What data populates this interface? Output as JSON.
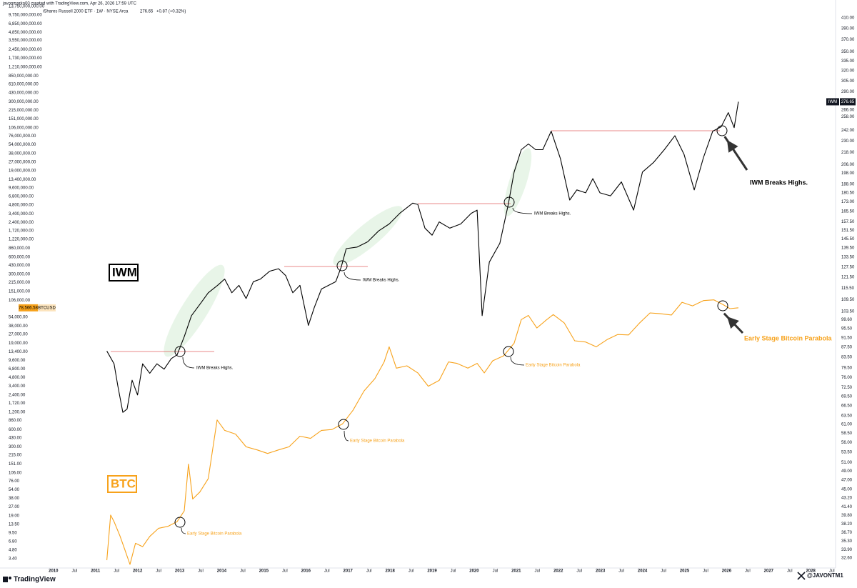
{
  "chart_data": {
    "type": "line",
    "title": "javonmarko00 created with TradingView.com, Apr 26, 2026 17:59 UTC",
    "subtitle": "iShares Russell 2000 ETF · 1W · NYSE Arca",
    "last_price": "276.65",
    "change": "+0.87 (+0.32%)",
    "log_scale": true,
    "grid": false,
    "xlim": [
      2008.73,
      2028.59
    ],
    "xticks": [
      2010,
      {
        "value": 2010.5,
        "label": "Jul"
      },
      2011,
      {
        "value": 2011.5,
        "label": "Jul"
      },
      2012,
      {
        "value": 2012.5,
        "label": "Jul"
      },
      2013,
      {
        "value": 2013.5,
        "label": "Jul"
      },
      2014,
      {
        "value": 2014.5,
        "label": "Jul"
      },
      2015,
      {
        "value": 2015.5,
        "label": "Jul"
      },
      2016,
      {
        "value": 2016.5,
        "label": "Jul"
      },
      2017,
      {
        "value": 2017.5,
        "label": "Jul"
      },
      2018,
      {
        "value": 2018.5,
        "label": "Jul"
      },
      2019,
      {
        "value": 2019.5,
        "label": "Jul"
      },
      2020,
      {
        "value": 2020.5,
        "label": "Jul"
      },
      2021,
      {
        "value": 2021.5,
        "label": "Jul"
      },
      2022,
      {
        "value": 2022.5,
        "label": "Jul"
      },
      2023,
      {
        "value": 2023.5,
        "label": "Jul"
      },
      2024,
      {
        "value": 2024.5,
        "label": "Jul"
      },
      2025,
      {
        "value": 2025.5,
        "label": "Jul"
      },
      2026,
      {
        "value": 2026.5,
        "label": "Jul"
      },
      2027,
      {
        "value": 2027.5,
        "label": "Jul"
      },
      2028,
      {
        "value": 2028.5,
        "label": "Jul"
      }
    ],
    "ylim": [
      2.34,
      14150000000
    ],
    "yticks": [
      {
        "value": 13750000000,
        "label": "13,750,000,000.00"
      },
      {
        "value": 9750000000,
        "label": "9,750,000,000.00"
      },
      {
        "value": 6850000000,
        "label": "6,850,000,000.00"
      },
      {
        "value": 4850000000,
        "label": "4,850,000,000.00"
      },
      {
        "value": 3550000000,
        "label": "3,550,000,000.00"
      },
      {
        "value": 2450000000,
        "label": "2,450,000,000.00"
      },
      {
        "value": 1730000000,
        "label": "1,730,000,000.00"
      },
      {
        "value": 1210000000,
        "label": "1,210,000,000.00"
      },
      {
        "value": 850000000,
        "label": "850,000,000.00"
      },
      {
        "value": 610000000,
        "label": "610,000,000.00"
      },
      {
        "value": 430000000,
        "label": "430,000,000.00"
      },
      {
        "value": 300000000,
        "label": "300,000,000.00"
      },
      {
        "value": 215000000,
        "label": "215,000,000.00"
      },
      {
        "value": 151000000,
        "label": "151,000,000.00"
      },
      {
        "value": 106000000,
        "label": "106,000,000.00"
      },
      {
        "value": 76000000,
        "label": "76,000,000.00"
      },
      {
        "value": 54000000,
        "label": "54,000,000.00"
      },
      {
        "value": 38000000,
        "label": "38,000,000.00"
      },
      {
        "value": 27000000,
        "label": "27,000,000.00"
      },
      {
        "value": 19000000,
        "label": "19,000,000.00"
      },
      {
        "value": 13400000,
        "label": "13,400,000.00"
      },
      {
        "value": 9600000,
        "label": "9,600,000.00"
      },
      {
        "value": 6800000,
        "label": "6,800,000.00"
      },
      {
        "value": 4800000,
        "label": "4,800,000.00"
      },
      {
        "value": 3400000,
        "label": "3,400,000.00"
      },
      {
        "value": 2400000,
        "label": "2,400,000.00"
      },
      {
        "value": 1720000,
        "label": "1,720,000.00"
      },
      {
        "value": 1220000,
        "label": "1,220,000.00"
      },
      {
        "value": 860000,
        "label": "860,000.00"
      },
      {
        "value": 600000,
        "label": "600,000.00"
      },
      {
        "value": 430000,
        "label": "430,000.00"
      },
      {
        "value": 300000,
        "label": "300,000.00"
      },
      {
        "value": 215000,
        "label": "215,000.00"
      },
      {
        "value": 151000,
        "label": "151,000.00"
      },
      {
        "value": 106000,
        "label": "106,000.00"
      },
      {
        "value": 54000,
        "label": "54,000.00"
      },
      {
        "value": 38000,
        "label": "38,000.00"
      },
      {
        "value": 27000,
        "label": "27,000.00"
      },
      {
        "value": 19000,
        "label": "19,000.00"
      },
      {
        "value": 13400,
        "label": "13,400.00"
      },
      {
        "value": 9600,
        "label": "9,600.00"
      },
      {
        "value": 6800,
        "label": "6,800.00"
      },
      {
        "value": 4800,
        "label": "4,800.00"
      },
      {
        "value": 3400,
        "label": "3,400.00"
      },
      {
        "value": 2400,
        "label": "2,400.00"
      },
      {
        "value": 1720,
        "label": "1,720.00"
      },
      {
        "value": 1200,
        "label": "1,200.00"
      },
      {
        "value": 860,
        "label": "860.00"
      },
      {
        "value": 600,
        "label": "600.00"
      },
      {
        "value": 430,
        "label": "430.00"
      },
      {
        "value": 300,
        "label": "300.00"
      },
      {
        "value": 215,
        "label": "215.00"
      },
      {
        "value": 151,
        "label": "151.00"
      },
      {
        "value": 106,
        "label": "106.00"
      },
      {
        "value": 76,
        "label": "76.00"
      },
      {
        "value": 54,
        "label": "54.00"
      },
      {
        "value": 38,
        "label": "38.00"
      },
      {
        "value": 27,
        "label": "27.00"
      },
      {
        "value": 19,
        "label": "19.00"
      },
      {
        "value": 13.5,
        "label": "13.50"
      },
      {
        "value": 9.5,
        "label": "9.50"
      },
      {
        "value": 6.8,
        "label": "6.80"
      },
      {
        "value": 4.8,
        "label": "4.80"
      },
      {
        "value": 3.4,
        "label": "3.40"
      }
    ],
    "y2log": true,
    "y2lim": [
      31.1,
      434
    ],
    "y2ticks": [
      {
        "value": 410,
        "label": "410.00"
      },
      {
        "value": 390,
        "label": "390.00"
      },
      {
        "value": 370,
        "label": "370.00"
      },
      {
        "value": 350,
        "label": "350.00"
      },
      {
        "value": 335,
        "label": "335.00"
      },
      {
        "value": 320,
        "label": "320.00"
      },
      {
        "value": 305,
        "label": "305.00"
      },
      {
        "value": 290,
        "label": "290.00"
      },
      {
        "value": 266,
        "label": "266.00"
      },
      {
        "value": 258,
        "label": "258.00"
      },
      {
        "value": 242,
        "label": "242.00"
      },
      {
        "value": 230,
        "label": "230.00"
      },
      {
        "value": 218,
        "label": "218.00"
      },
      {
        "value": 206,
        "label": "206.00"
      },
      {
        "value": 198,
        "label": "198.00"
      },
      {
        "value": 188,
        "label": "188.00"
      },
      {
        "value": 180.5,
        "label": "180.50"
      },
      {
        "value": 173,
        "label": "173.00"
      },
      {
        "value": 165.5,
        "label": "165.50"
      },
      {
        "value": 157.5,
        "label": "157.50"
      },
      {
        "value": 151.5,
        "label": "151.50"
      },
      {
        "value": 145.5,
        "label": "145.50"
      },
      {
        "value": 139.5,
        "label": "139.50"
      },
      {
        "value": 133.5,
        "label": "133.50"
      },
      {
        "value": 127.5,
        "label": "127.50"
      },
      {
        "value": 121.5,
        "label": "121.50"
      },
      {
        "value": 115.5,
        "label": "115.50"
      },
      {
        "value": 109.5,
        "label": "109.50"
      },
      {
        "value": 103.5,
        "label": "103.50"
      },
      {
        "value": 99.6,
        "label": "99.60"
      },
      {
        "value": 95.5,
        "label": "95.50"
      },
      {
        "value": 91.5,
        "label": "91.50"
      },
      {
        "value": 87.5,
        "label": "87.50"
      },
      {
        "value": 83.5,
        "label": "83.50"
      },
      {
        "value": 79.5,
        "label": "79.50"
      },
      {
        "value": 76,
        "label": "76.00"
      },
      {
        "value": 72.5,
        "label": "72.50"
      },
      {
        "value": 69.5,
        "label": "69.50"
      },
      {
        "value": 66.5,
        "label": "66.50"
      },
      {
        "value": 63.5,
        "label": "63.50"
      },
      {
        "value": 61,
        "label": "61.00"
      },
      {
        "value": 58.5,
        "label": "58.50"
      },
      {
        "value": 56,
        "label": "56.00"
      },
      {
        "value": 53.5,
        "label": "53.50"
      },
      {
        "value": 51,
        "label": "51.00"
      },
      {
        "value": 49,
        "label": "49.00"
      },
      {
        "value": 47,
        "label": "47.00"
      },
      {
        "value": 45,
        "label": "45.00"
      },
      {
        "value": 43.2,
        "label": "43.20"
      },
      {
        "value": 41.4,
        "label": "41.40"
      },
      {
        "value": 39.8,
        "label": "39.80"
      },
      {
        "value": 38.2,
        "label": "38.20"
      },
      {
        "value": 36.7,
        "label": "36.70"
      },
      {
        "value": 35.3,
        "label": "35.30"
      },
      {
        "value": 33.9,
        "label": "33.90"
      },
      {
        "value": 32.6,
        "label": "32.60"
      }
    ],
    "series": [
      {
        "name": "IWM",
        "color": "#000000",
        "axis": "y2",
        "price_label": "276.65",
        "x": [
          2011.27,
          2011.44,
          2011.53,
          2011.65,
          2011.75,
          2011.87,
          2012.0,
          2012.12,
          2012.29,
          2012.46,
          2012.63,
          2012.8,
          2012.94,
          2013.11,
          2013.28,
          2013.48,
          2013.68,
          2013.9,
          2014.07,
          2014.24,
          2014.41,
          2014.58,
          2014.75,
          2014.92,
          2015.14,
          2015.35,
          2015.52,
          2015.69,
          2015.86,
          2016.06,
          2016.2,
          2016.37,
          2016.54,
          2016.71,
          2016.84,
          2016.96,
          2017.22,
          2017.47,
          2017.73,
          2017.98,
          2018.23,
          2018.54,
          2018.66,
          2018.83,
          2019.0,
          2019.17,
          2019.42,
          2019.68,
          2019.93,
          2020.07,
          2020.19,
          2020.36,
          2020.61,
          2020.81,
          2020.95,
          2021.12,
          2021.29,
          2021.46,
          2021.63,
          2021.83,
          2022.05,
          2022.27,
          2022.44,
          2022.65,
          2022.82,
          2022.99,
          2023.24,
          2023.5,
          2023.79,
          2024.0,
          2024.26,
          2024.52,
          2024.77,
          2024.99,
          2025.23,
          2025.45,
          2025.67,
          2025.87,
          2026.04,
          2026.18,
          2026.28
        ],
        "values": [
          86,
          81,
          73,
          64.5,
          65.5,
          75,
          70,
          81,
          77.5,
          81,
          79,
          83,
          84.5,
          92,
          101.5,
          107,
          113,
          117,
          120.5,
          113,
          117,
          110,
          119,
          120.5,
          125,
          126.5,
          122.5,
          113,
          117,
          97,
          105.5,
          115,
          117,
          119,
          127.5,
          139,
          140,
          143.5,
          151,
          156,
          164,
          172,
          171,
          153,
          148,
          157.5,
          153,
          156,
          164,
          166.5,
          101.5,
          130.5,
          142.5,
          171,
          199,
          221,
          227,
          221,
          221,
          241,
          212,
          174.5,
          183,
          180.5,
          193,
          180.5,
          178,
          190,
          166.5,
          199,
          208,
          221,
          236,
          216,
          183,
          213,
          241,
          246,
          263,
          245,
          276.65
        ]
      },
      {
        "name": "BTCUSD",
        "color": "#f7a21b",
        "price_label": "78,566.58",
        "x": [
          2011.27,
          2011.36,
          2011.44,
          2011.58,
          2011.7,
          2011.82,
          2011.95,
          2012.12,
          2012.29,
          2012.5,
          2012.72,
          2012.94,
          2013.11,
          2013.21,
          2013.31,
          2013.48,
          2013.68,
          2013.89,
          2014.07,
          2014.33,
          2014.58,
          2014.84,
          2015.09,
          2015.35,
          2015.6,
          2015.86,
          2016.11,
          2016.37,
          2016.62,
          2016.87,
          2017.12,
          2017.38,
          2017.64,
          2017.86,
          2017.98,
          2018.15,
          2018.4,
          2018.66,
          2018.91,
          2019.17,
          2019.39,
          2019.59,
          2019.85,
          2020.07,
          2020.24,
          2020.44,
          2020.7,
          2020.95,
          2021.12,
          2021.29,
          2021.49,
          2021.71,
          2021.88,
          2022.14,
          2022.39,
          2022.65,
          2022.9,
          2023.16,
          2023.41,
          2023.67,
          2023.92,
          2024.18,
          2024.43,
          2024.69,
          2024.94,
          2025.19,
          2025.45,
          2025.7,
          2025.91,
          2026.08,
          2026.28
        ],
        "values": [
          3.2,
          19.5,
          15,
          8.5,
          4.8,
          2.7,
          6.3,
          5.5,
          8.3,
          11.5,
          12.4,
          15,
          23,
          150,
          37,
          49,
          84,
          880,
          580,
          500,
          300,
          265,
          230,
          265,
          300,
          460,
          420,
          580,
          600,
          750,
          1300,
          2800,
          4600,
          9000,
          16500,
          7000,
          7700,
          5800,
          3400,
          4300,
          9000,
          8500,
          7000,
          8500,
          5800,
          9400,
          11500,
          19000,
          49000,
          58000,
          35000,
          48000,
          60000,
          43000,
          21000,
          20000,
          16500,
          22000,
          27000,
          26500,
          42000,
          64000,
          62000,
          59000,
          98000,
          85000,
          105000,
          108000,
          90000,
          76000,
          78566.58
        ]
      }
    ],
    "annotations": [
      "IWM",
      "BTC",
      "IWM Breaks Highs.",
      "IWM Breaks Highs.",
      "IWM Breaks Highs.",
      "IWM Breaks Highs.",
      "Early Stage Bitcoin Parabola",
      "Early Stage Bitcoin Parabola",
      "Early Stage Bitcoin Parabola",
      "Early Stage Bitcoin Parabola"
    ],
    "watermark": "@JAVONTM1",
    "logo": "TradingView"
  }
}
